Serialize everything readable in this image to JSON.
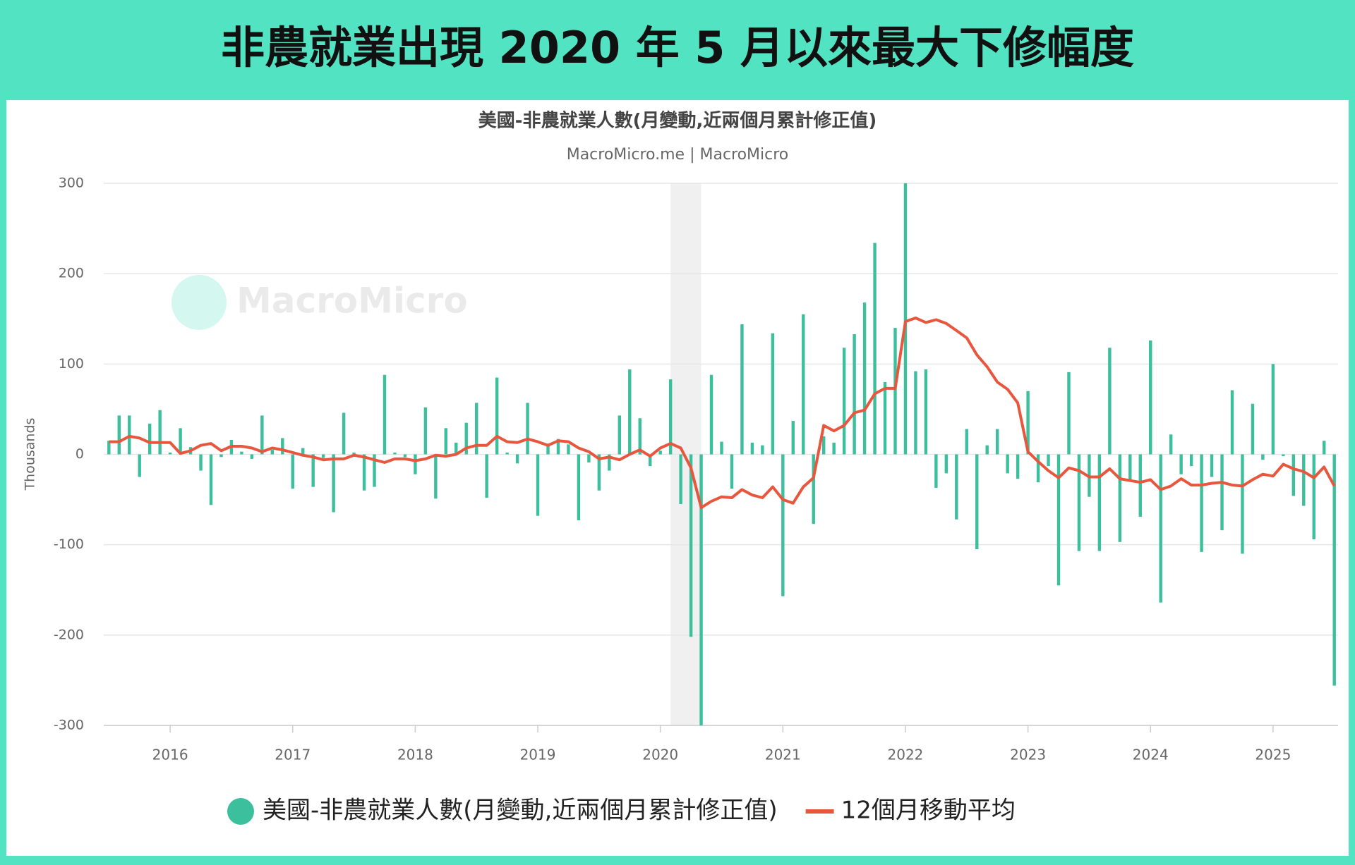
{
  "header": {
    "title": "非農就業出現 2020 年 5 月以來最大下修幅度"
  },
  "chart_data": {
    "type": "bar-line",
    "title": "美國-非農就業人數(月變動,近兩個月累計修正值)",
    "subtitle": "MacroMicro.me | MacroMicro",
    "watermark": "MacroMicro",
    "y_label": "Thousands",
    "x": [
      "2015-07",
      "2015-08",
      "2015-09",
      "2015-10",
      "2015-11",
      "2015-12",
      "2016-01",
      "2016-02",
      "2016-03",
      "2016-04",
      "2016-05",
      "2016-06",
      "2016-07",
      "2016-08",
      "2016-09",
      "2016-10",
      "2016-11",
      "2016-12",
      "2017-01",
      "2017-02",
      "2017-03",
      "2017-04",
      "2017-05",
      "2017-06",
      "2017-07",
      "2017-08",
      "2017-09",
      "2017-10",
      "2017-11",
      "2017-12",
      "2018-01",
      "2018-02",
      "2018-03",
      "2018-04",
      "2018-05",
      "2018-06",
      "2018-07",
      "2018-08",
      "2018-09",
      "2018-10",
      "2018-11",
      "2018-12",
      "2019-01",
      "2019-02",
      "2019-03",
      "2019-04",
      "2019-05",
      "2019-06",
      "2019-07",
      "2019-08",
      "2019-09",
      "2019-10",
      "2019-11",
      "2019-12",
      "2020-01",
      "2020-02",
      "2020-03",
      "2020-04",
      "2020-05",
      "2020-06",
      "2020-07",
      "2020-08",
      "2020-09",
      "2020-10",
      "2020-11",
      "2020-12",
      "2021-01",
      "2021-02",
      "2021-03",
      "2021-04",
      "2021-05",
      "2021-06",
      "2021-07",
      "2021-08",
      "2021-09",
      "2021-10",
      "2021-11",
      "2021-12",
      "2022-01",
      "2022-02",
      "2022-03",
      "2022-04",
      "2022-05",
      "2022-06",
      "2022-07",
      "2022-08",
      "2022-09",
      "2022-10",
      "2022-11",
      "2022-12",
      "2023-01",
      "2023-02",
      "2023-03",
      "2023-04",
      "2023-05",
      "2023-06",
      "2023-07",
      "2023-08",
      "2023-09",
      "2023-10",
      "2023-11",
      "2023-12",
      "2024-01",
      "2024-02",
      "2024-03",
      "2024-04",
      "2024-05",
      "2024-06",
      "2024-07",
      "2024-08",
      "2024-09",
      "2024-10",
      "2024-11",
      "2024-12",
      "2025-01",
      "2025-02",
      "2025-03",
      "2025-04",
      "2025-05",
      "2025-06",
      "2025-07"
    ],
    "series": [
      {
        "name": "美國-非農就業人數(月變動,近兩個月累計修正值)",
        "type": "bar",
        "color": "#3cbf9c",
        "values": [
          15,
          43,
          43,
          -25,
          34,
          49,
          2,
          29,
          8,
          -18,
          -56,
          -3,
          16,
          3,
          -5,
          43,
          5,
          18,
          -38,
          7,
          -36,
          -4,
          -64,
          46,
          2,
          -40,
          -36,
          88,
          2,
          -3,
          -22,
          52,
          -49,
          29,
          13,
          35,
          57,
          -48,
          85,
          2,
          -10,
          57,
          -68,
          12,
          17,
          11,
          -73,
          -9,
          -40,
          -18,
          43,
          94,
          40,
          -13,
          4,
          83,
          -55,
          -202,
          -300,
          88,
          14,
          -38,
          144,
          13,
          10,
          134,
          -157,
          37,
          155,
          -77,
          20,
          13,
          118,
          133,
          168,
          234,
          80,
          140,
          300,
          92,
          94,
          -37,
          -21,
          -72,
          28,
          -105,
          10,
          28,
          -21,
          -27,
          70,
          -31,
          -13,
          -145,
          91,
          -107,
          -47,
          -107,
          118,
          -97,
          -30,
          -69,
          126,
          -164,
          22,
          -22,
          -13,
          -108,
          -25,
          -84,
          71,
          -110,
          56,
          -6,
          100,
          -2,
          -46,
          -57,
          -94,
          15,
          -256
        ]
      },
      {
        "name": "12個月移動平均",
        "type": "line",
        "color": "#e8563e",
        "values": [
          14,
          14,
          20,
          18,
          13,
          13,
          13,
          1,
          4,
          10,
          12,
          4,
          9,
          9,
          7,
          3,
          7,
          5,
          2,
          -1,
          -3,
          -6,
          -5,
          -5,
          -1,
          -3,
          -6,
          -9,
          -5,
          -5,
          -7,
          -5,
          -1,
          -2,
          0,
          7,
          10,
          10,
          20,
          14,
          13,
          17,
          14,
          10,
          15,
          14,
          7,
          3,
          -5,
          -3,
          -6,
          0,
          5,
          -2,
          7,
          12,
          7,
          -15,
          -59,
          -52,
          -47,
          -48,
          -39,
          -45,
          -48,
          -36,
          -50,
          -54,
          -36,
          -26,
          32,
          26,
          32,
          46,
          49,
          67,
          73,
          73,
          147,
          151,
          146,
          149,
          145,
          137,
          129,
          110,
          97,
          80,
          72,
          57,
          3,
          -8,
          -18,
          -26,
          -15,
          -18,
          -25,
          -25,
          -16,
          -27,
          -29,
          -31,
          -28,
          -39,
          -35,
          -27,
          -34,
          -34,
          -32,
          -31,
          -34,
          -35,
          -28,
          -22,
          -24,
          -11,
          -16,
          -19,
          -26,
          -14,
          -35
        ]
      }
    ],
    "shaded_region": {
      "from": "2020-02",
      "to": "2020-04",
      "color": "#f0f0f0"
    },
    "ylim": [
      -300,
      300
    ],
    "yticks": [
      -300,
      -200,
      -100,
      0,
      100,
      200,
      300
    ],
    "xticks": [
      2016,
      2017,
      2018,
      2019,
      2020,
      2021,
      2022,
      2023,
      2024,
      2025
    ],
    "grid": true
  }
}
